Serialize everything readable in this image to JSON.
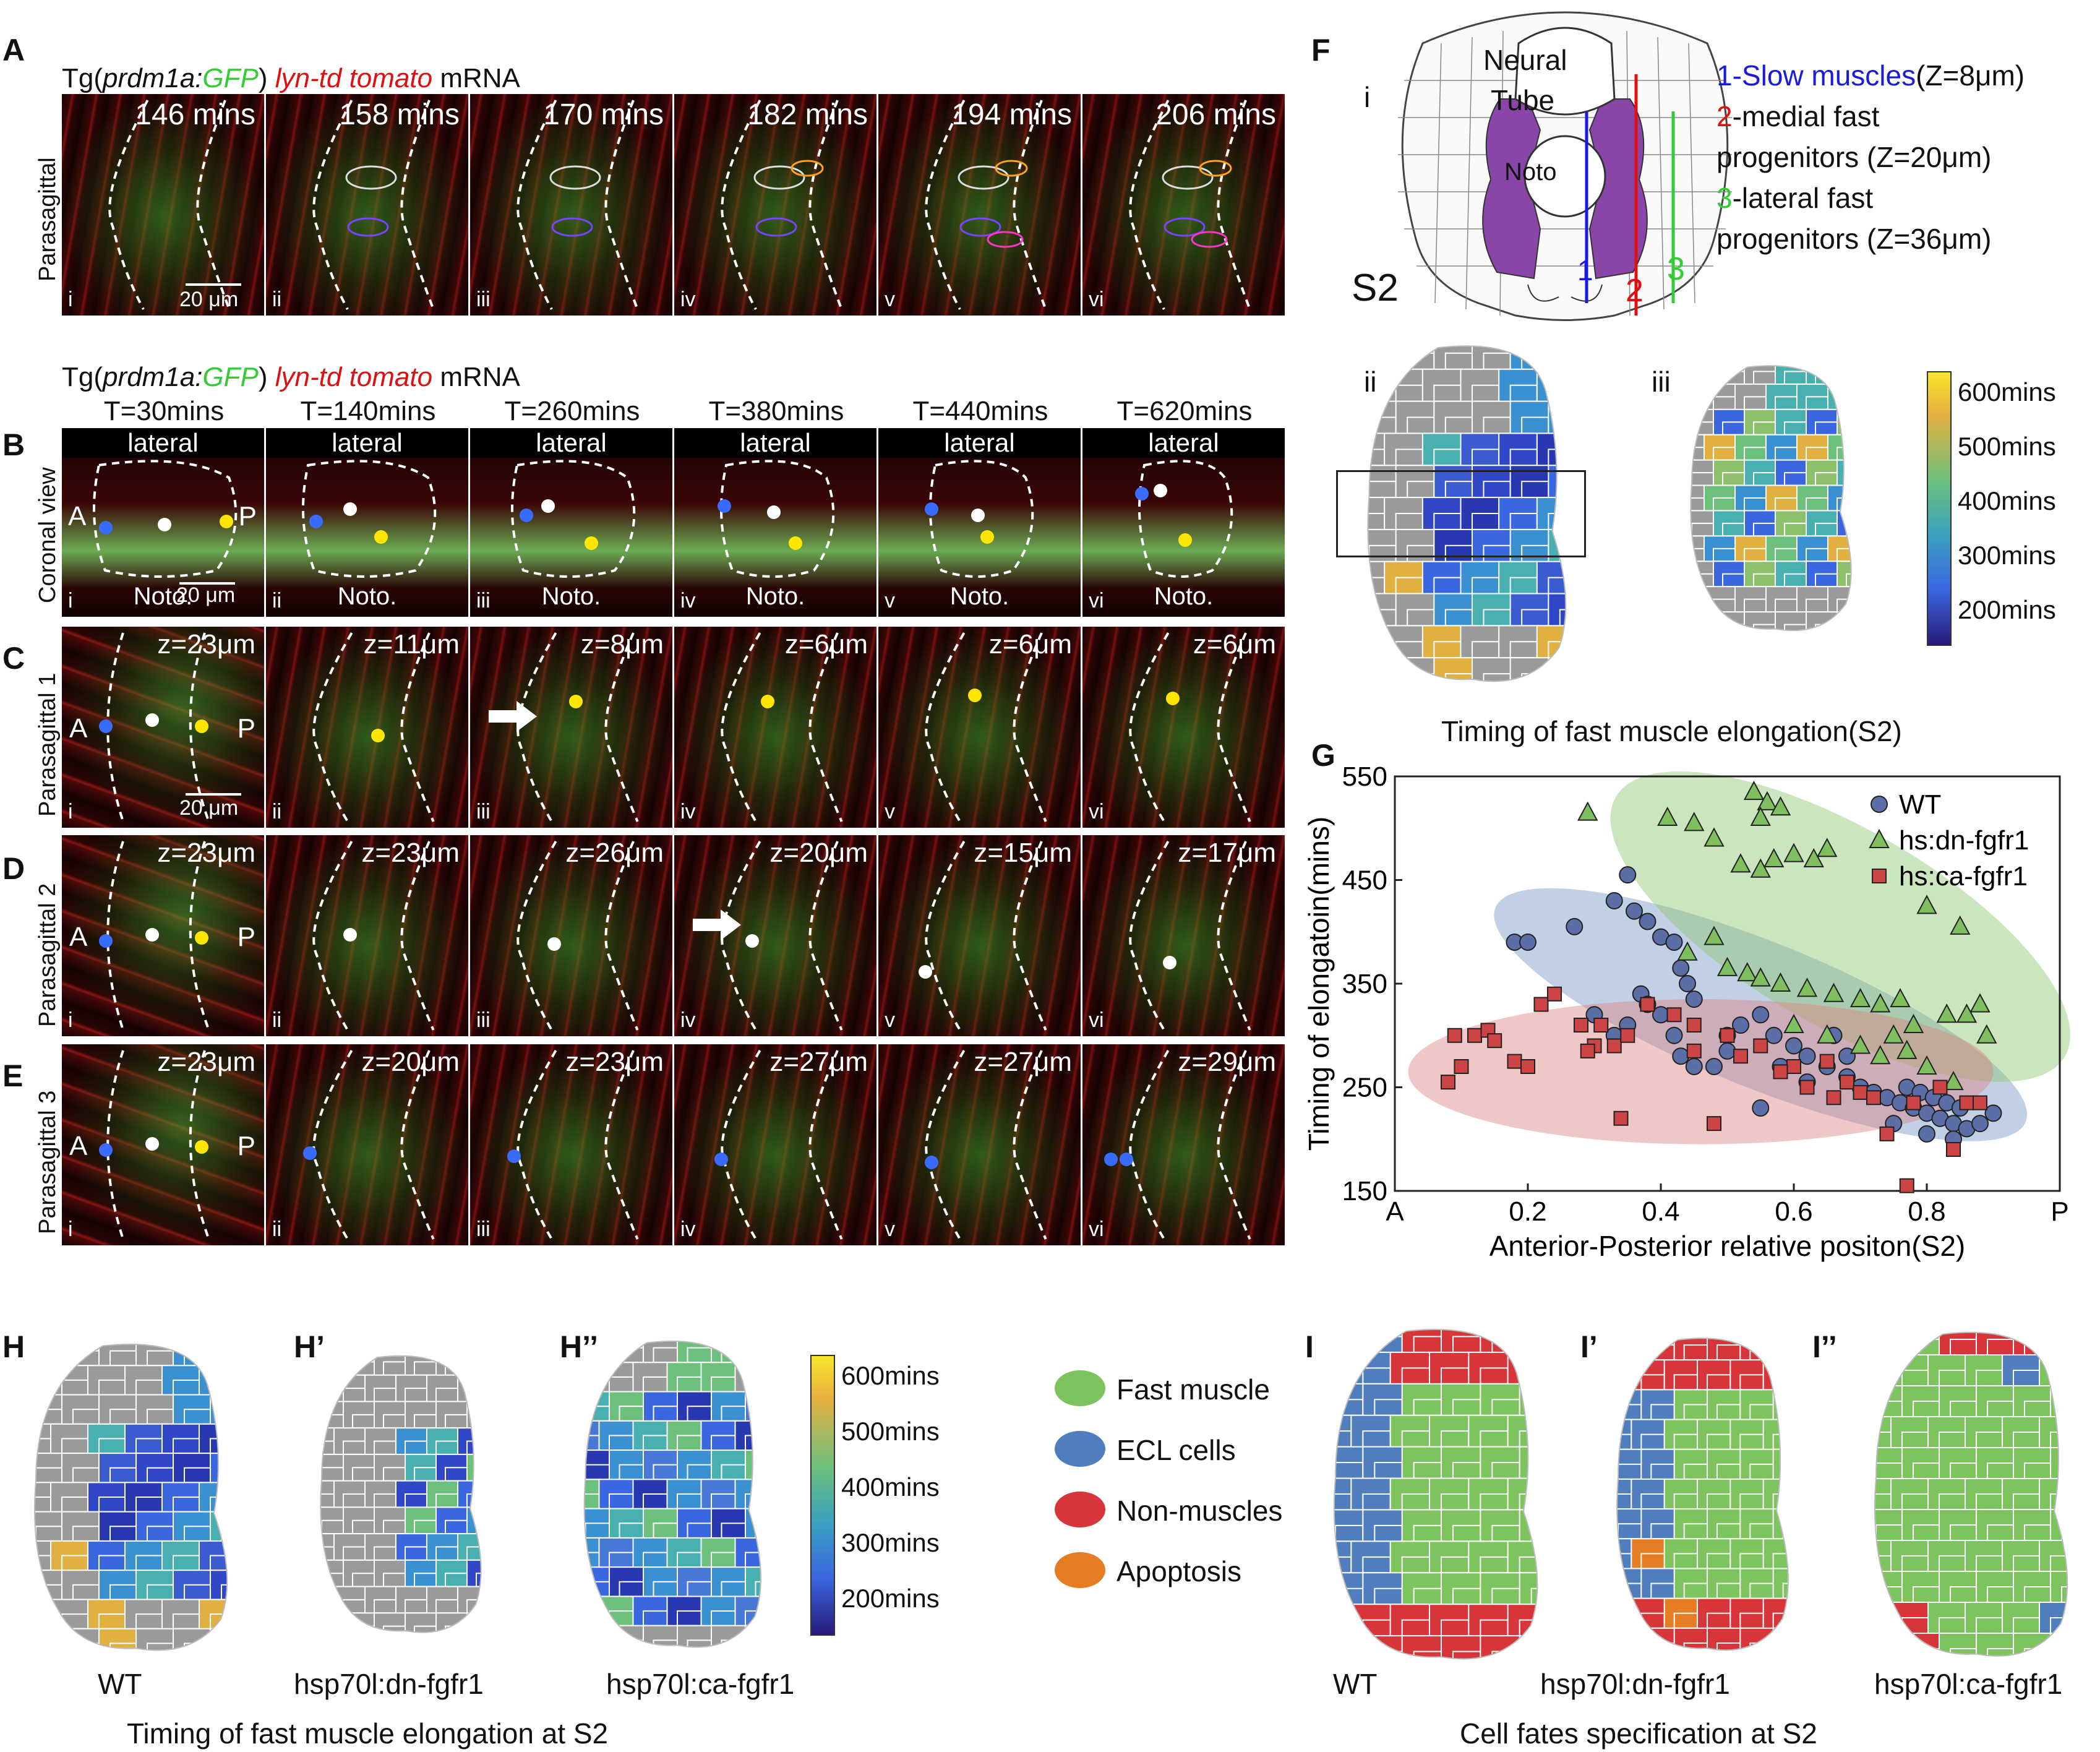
{
  "panels": {
    "A": {
      "label": "A",
      "caption_prefix": "Tg(",
      "caption_gene": "prdm1a:",
      "caption_gfp": "GFP",
      "caption_mid": ")",
      "caption_lyn": "lyn-td tomato",
      "caption_suffix": "mRNA",
      "row_label": "Parasagittal",
      "times": [
        "146 mins",
        "158 mins",
        "170 mins",
        "182 mins",
        "194 mins",
        "206 mins"
      ],
      "romans": [
        "i",
        "ii",
        "iii",
        "iv",
        "v",
        "vi"
      ],
      "scale": "20 μm"
    },
    "B": {
      "label": "B",
      "caption_prefix": "Tg(",
      "caption_gene": "prdm1a:",
      "caption_gfp": "GFP",
      "caption_mid": ")",
      "caption_lyn": "lyn-td tomato",
      "caption_suffix": "mRNA",
      "row_label": "Coronal view",
      "times": [
        "T=30mins",
        "T=140mins",
        "T=260mins",
        "T=380mins",
        "T=440mins",
        "T=620mins"
      ],
      "lateral": "lateral",
      "noto": "Noto.",
      "A": "A",
      "P": "P",
      "scale": "20 μm",
      "romans": [
        "i",
        "ii",
        "iii",
        "iv",
        "v",
        "vi"
      ]
    },
    "C": {
      "label": "C",
      "row_label": "Parasagittal 1",
      "z": [
        "z=23μm",
        "z=11μm",
        "z=8μm",
        "z=6μm",
        "z=6μm",
        "z=6μm"
      ],
      "A": "A",
      "P": "P",
      "scale": "20 μm",
      "romans": [
        "i",
        "ii",
        "iii",
        "iv",
        "v",
        "vi"
      ]
    },
    "D": {
      "label": "D",
      "row_label": "Parasagittal 2",
      "z": [
        "z=23μm",
        "z=23μm",
        "z=26μm",
        "z=20μm",
        "z=15μm",
        "z=17μm"
      ],
      "A": "A",
      "P": "P",
      "romans": [
        "i",
        "ii",
        "iii",
        "iv",
        "v",
        "vi"
      ]
    },
    "E": {
      "label": "E",
      "row_label": "Parasagittal 3",
      "z": [
        "z=23μm",
        "z=20μm",
        "z=23μm",
        "z=27μm",
        "z=27μm",
        "z=29μm"
      ],
      "A": "A",
      "P": "P",
      "romans": [
        "i",
        "ii",
        "iii",
        "iv",
        "v",
        "vi"
      ]
    },
    "F": {
      "label": "F",
      "sub_i": "i",
      "sub_ii": "ii",
      "sub_iii": "iii",
      "neural": "Neural",
      "tube": "Tube",
      "noto": "Noto",
      "s2": "S2",
      "lines": [
        "1",
        "2",
        "3"
      ],
      "legend": [
        {
          "num": "1",
          "text": "-Slow muscles",
          "z": "(Z=8μm)",
          "color": "#1a1adf"
        },
        {
          "num": "2",
          "text": "-medial fast",
          "z": "",
          "color": "#dd1111"
        },
        {
          "num": "",
          "text": "progenitors (Z=20μm)",
          "z": "",
          "color": "#111111"
        },
        {
          "num": "3",
          "text": "-lateral fast",
          "z": "",
          "color": "#33cc33"
        },
        {
          "num": "",
          "text": "progenitors (Z=36μm)",
          "z": "",
          "color": "#111111"
        }
      ],
      "colorbar": [
        "600mins",
        "500mins",
        "400mins",
        "300mins",
        "200mins"
      ],
      "caption": "Timing of fast muscle elongation(S2)"
    },
    "H": {
      "label": "H",
      "label2": "H’",
      "label3": "H’’",
      "names": [
        "WT",
        "hsp70l:dn-fgfr1",
        "hsp70l:ca-fgfr1"
      ],
      "colorbar": [
        "600mins",
        "500mins",
        "400mins",
        "300mins",
        "200mins"
      ],
      "caption": "Timing of fast muscle elongation at S2"
    },
    "I": {
      "label": "I",
      "label2": "I’",
      "label3": "I’’",
      "names": [
        "WT",
        "hsp70l:dn-fgfr1",
        "hsp70l:ca-fgfr1"
      ],
      "legend": [
        {
          "text": "Fast muscle",
          "color": "#7dc45e"
        },
        {
          "text": "ECL cells",
          "color": "#4f7dbd"
        },
        {
          "text": "Non-muscles",
          "color": "#d8353a"
        },
        {
          "text": "Apoptosis",
          "color": "#e57d25"
        }
      ],
      "caption": "Cell fates specification at S2"
    }
  },
  "chart_data": {
    "type": "scatter",
    "panel_label": "G",
    "xlabel": "Anterior-Posterior relative positon(S2)",
    "ylabel": "Timing of elongatoin(mins)",
    "x_ticks": [
      "A",
      "0.2",
      "0.4",
      "0.6",
      "0.8",
      "P"
    ],
    "y_ticks": [
      "550",
      "450",
      "350",
      "250",
      "150"
    ],
    "xlim": [
      0,
      1
    ],
    "ylim": [
      150,
      550
    ],
    "legend_position": "top-right",
    "series": [
      {
        "name": "WT",
        "marker": "circle",
        "color": "#5b6fa6",
        "points": [
          [
            0.18,
            390
          ],
          [
            0.2,
            390
          ],
          [
            0.27,
            405
          ],
          [
            0.33,
            430
          ],
          [
            0.35,
            455
          ],
          [
            0.36,
            420
          ],
          [
            0.38,
            410
          ],
          [
            0.4,
            395
          ],
          [
            0.42,
            390
          ],
          [
            0.43,
            365
          ],
          [
            0.44,
            350
          ],
          [
            0.45,
            335
          ],
          [
            0.37,
            340
          ],
          [
            0.38,
            330
          ],
          [
            0.4,
            320
          ],
          [
            0.42,
            300
          ],
          [
            0.35,
            310
          ],
          [
            0.33,
            300
          ],
          [
            0.3,
            320
          ],
          [
            0.43,
            280
          ],
          [
            0.45,
            270
          ],
          [
            0.5,
            300
          ],
          [
            0.52,
            310
          ],
          [
            0.55,
            320
          ],
          [
            0.57,
            300
          ],
          [
            0.6,
            290
          ],
          [
            0.62,
            280
          ],
          [
            0.65,
            270
          ],
          [
            0.68,
            260
          ],
          [
            0.7,
            250
          ],
          [
            0.72,
            245
          ],
          [
            0.74,
            240
          ],
          [
            0.76,
            235
          ],
          [
            0.78,
            230
          ],
          [
            0.8,
            225
          ],
          [
            0.82,
            220
          ],
          [
            0.84,
            215
          ],
          [
            0.86,
            210
          ],
          [
            0.88,
            215
          ],
          [
            0.9,
            225
          ],
          [
            0.77,
            250
          ],
          [
            0.79,
            245
          ],
          [
            0.81,
            240
          ],
          [
            0.83,
            235
          ],
          [
            0.85,
            230
          ],
          [
            0.75,
            215
          ],
          [
            0.8,
            205
          ],
          [
            0.84,
            200
          ],
          [
            0.55,
            230
          ],
          [
            0.58,
            270
          ],
          [
            0.62,
            255
          ],
          [
            0.48,
            270
          ],
          [
            0.5,
            285
          ],
          [
            0.66,
            300
          ],
          [
            0.68,
            280
          ]
        ]
      },
      {
        "name": "hs:dn-fgfr1",
        "marker": "triangle",
        "color": "#7fbf5f",
        "points": [
          [
            0.29,
            515
          ],
          [
            0.41,
            510
          ],
          [
            0.45,
            505
          ],
          [
            0.54,
            535
          ],
          [
            0.56,
            525
          ],
          [
            0.55,
            510
          ],
          [
            0.58,
            520
          ],
          [
            0.48,
            490
          ],
          [
            0.52,
            465
          ],
          [
            0.55,
            460
          ],
          [
            0.57,
            470
          ],
          [
            0.6,
            475
          ],
          [
            0.63,
            470
          ],
          [
            0.65,
            480
          ],
          [
            0.48,
            395
          ],
          [
            0.44,
            380
          ],
          [
            0.5,
            365
          ],
          [
            0.53,
            360
          ],
          [
            0.55,
            355
          ],
          [
            0.58,
            350
          ],
          [
            0.62,
            345
          ],
          [
            0.66,
            340
          ],
          [
            0.7,
            335
          ],
          [
            0.73,
            330
          ],
          [
            0.76,
            335
          ],
          [
            0.8,
            425
          ],
          [
            0.85,
            405
          ],
          [
            0.88,
            330
          ],
          [
            0.83,
            320
          ],
          [
            0.86,
            320
          ],
          [
            0.89,
            300
          ],
          [
            0.75,
            300
          ],
          [
            0.77,
            285
          ],
          [
            0.7,
            290
          ],
          [
            0.73,
            280
          ],
          [
            0.8,
            270
          ],
          [
            0.84,
            255
          ],
          [
            0.6,
            310
          ],
          [
            0.65,
            300
          ],
          [
            0.78,
            310
          ]
        ]
      },
      {
        "name": "hs:ca-fgfr1",
        "marker": "square",
        "color": "#cc4444",
        "points": [
          [
            0.08,
            255
          ],
          [
            0.09,
            300
          ],
          [
            0.1,
            270
          ],
          [
            0.12,
            300
          ],
          [
            0.14,
            305
          ],
          [
            0.15,
            295
          ],
          [
            0.18,
            275
          ],
          [
            0.2,
            270
          ],
          [
            0.22,
            330
          ],
          [
            0.24,
            340
          ],
          [
            0.28,
            310
          ],
          [
            0.3,
            290
          ],
          [
            0.29,
            285
          ],
          [
            0.31,
            310
          ],
          [
            0.33,
            290
          ],
          [
            0.35,
            300
          ],
          [
            0.38,
            330
          ],
          [
            0.42,
            320
          ],
          [
            0.45,
            310
          ],
          [
            0.5,
            300
          ],
          [
            0.55,
            290
          ],
          [
            0.6,
            270
          ],
          [
            0.62,
            250
          ],
          [
            0.65,
            275
          ],
          [
            0.68,
            255
          ],
          [
            0.7,
            245
          ],
          [
            0.72,
            240
          ],
          [
            0.78,
            235
          ],
          [
            0.82,
            250
          ],
          [
            0.86,
            235
          ],
          [
            0.88,
            235
          ],
          [
            0.34,
            220
          ],
          [
            0.48,
            215
          ],
          [
            0.74,
            205
          ],
          [
            0.84,
            190
          ],
          [
            0.77,
            155
          ],
          [
            0.58,
            265
          ],
          [
            0.52,
            280
          ],
          [
            0.66,
            240
          ],
          [
            0.45,
            285
          ]
        ]
      }
    ],
    "ellipses": [
      {
        "series": "WT",
        "color": "rgba(120,150,200,0.45)"
      },
      {
        "series": "hs:dn-fgfr1",
        "color": "rgba(140,200,110,0.45)"
      },
      {
        "series": "hs:ca-fgfr1",
        "color": "rgba(220,130,130,0.45)"
      }
    ]
  }
}
